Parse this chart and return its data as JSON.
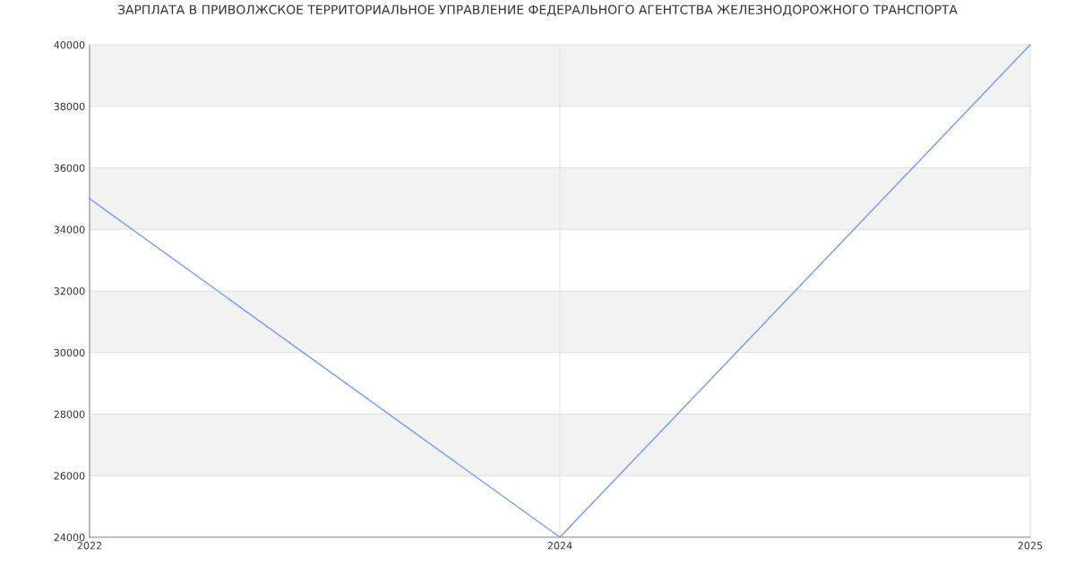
{
  "chart_data": {
    "type": "line",
    "title": "ЗАРПЛАТА В ПРИВОЛЖСКОЕ ТЕРРИТОРИАЛЬНОЕ УПРАВЛЕНИЕ ФЕДЕРАЛЬНОГО АГЕНТСТВА ЖЕЛЕЗНОДОРОЖНОГО ТРАНСПОРТА",
    "categories": [
      "2022",
      "2024",
      "2025"
    ],
    "series": [
      {
        "color": "#6d9cf2",
        "values": [
          35000,
          24000,
          40000
        ]
      }
    ],
    "ylim": [
      24000,
      40000
    ],
    "yticks": [
      24000,
      26000,
      28000,
      30000,
      32000,
      34000,
      36000,
      38000,
      40000
    ],
    "bands": [
      {
        "axis": "y",
        "from": 26000,
        "to": 28000,
        "color": "#f2f2f2"
      },
      {
        "axis": "y",
        "from": 30000,
        "to": 32000,
        "color": "#f2f2f2"
      },
      {
        "axis": "y",
        "from": 34000,
        "to": 36000,
        "color": "#f2f2f2"
      },
      {
        "axis": "y",
        "from": 38000,
        "to": 40000,
        "color": "#f2f2f2"
      }
    ],
    "grid": true,
    "marker": "none",
    "line_style": "solid"
  }
}
